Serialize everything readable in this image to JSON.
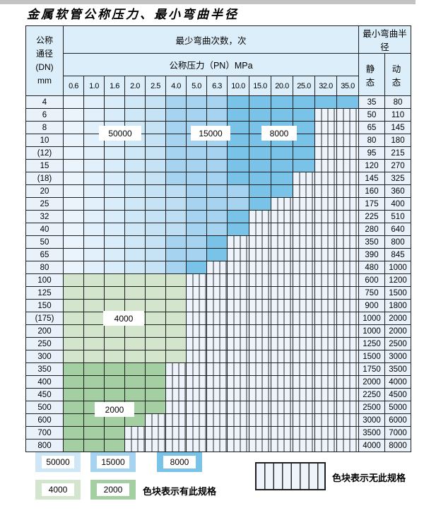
{
  "title": "金属软管公称压力、最小弯曲半径",
  "table": {
    "header": {
      "dn_lines": [
        "公称",
        "通径",
        "(DN)",
        "mm"
      ],
      "cycles_label": "最少弯曲次数，次",
      "pressure_label": "公称压力（PN）MPa",
      "pressure_columns": [
        "0.6",
        "1.0",
        "1.6",
        "2.0",
        "2.5",
        "4.0",
        "5.0",
        "6.3",
        "10.0",
        "15.0",
        "20.0",
        "25.0",
        "32.0",
        "35.0"
      ],
      "radius_label": "最小弯曲半径",
      "static_label": "静 态",
      "dynamic_label": "动 态"
    },
    "rows": [
      {
        "dn": "4",
        "static": "35",
        "dynamic": "80",
        "zone": "b",
        "last": 13,
        "m": 5,
        "d": 8
      },
      {
        "dn": "6",
        "static": "50",
        "dynamic": "110",
        "zone": "b",
        "last": 11,
        "m": 5,
        "d": 8
      },
      {
        "dn": "8",
        "static": "65",
        "dynamic": "145",
        "zone": "b",
        "last": 11,
        "m": 5,
        "d": 8
      },
      {
        "dn": "10",
        "static": "80",
        "dynamic": "180",
        "zone": "b",
        "last": 11,
        "m": 5,
        "d": 8
      },
      {
        "dn": "(12)",
        "static": "95",
        "dynamic": "215",
        "zone": "b",
        "last": 11,
        "m": 5,
        "d": 8
      },
      {
        "dn": "15",
        "static": "120",
        "dynamic": "270",
        "zone": "b",
        "last": 11,
        "m": 5,
        "d": 8
      },
      {
        "dn": "(18)",
        "static": "145",
        "dynamic": "325",
        "zone": "b",
        "last": 10,
        "m": 5,
        "d": 8
      },
      {
        "dn": "20",
        "static": "160",
        "dynamic": "360",
        "zone": "b",
        "last": 10,
        "m": 6,
        "d": 9
      },
      {
        "dn": "25",
        "static": "175",
        "dynamic": "400",
        "zone": "b",
        "last": 9,
        "m": 6,
        "d": 9
      },
      {
        "dn": "32",
        "static": "225",
        "dynamic": "510",
        "zone": "b",
        "last": 8,
        "m": 6,
        "d": 8
      },
      {
        "dn": "40",
        "static": "280",
        "dynamic": "640",
        "zone": "b",
        "last": 8,
        "m": 6,
        "d": 8
      },
      {
        "dn": "50",
        "static": "350",
        "dynamic": "800",
        "zone": "b",
        "last": 7,
        "m": 5,
        "d": 7
      },
      {
        "dn": "65",
        "static": "390",
        "dynamic": "845",
        "zone": "b",
        "last": 7,
        "m": 5,
        "d": 7
      },
      {
        "dn": "80",
        "static": "480",
        "dynamic": "1000",
        "zone": "b",
        "last": 6,
        "m": 5,
        "d": 6
      },
      {
        "dn": "100",
        "static": "600",
        "dynamic": "1200",
        "zone": "g1",
        "last": 5
      },
      {
        "dn": "125",
        "static": "750",
        "dynamic": "1500",
        "zone": "g1",
        "last": 5
      },
      {
        "dn": "150",
        "static": "900",
        "dynamic": "1800",
        "zone": "g1",
        "last": 5
      },
      {
        "dn": "(175)",
        "static": "1000",
        "dynamic": "2000",
        "zone": "g1",
        "last": 5
      },
      {
        "dn": "200",
        "static": "1000",
        "dynamic": "2000",
        "zone": "g1",
        "last": 5
      },
      {
        "dn": "250",
        "static": "1250",
        "dynamic": "2500",
        "zone": "g1",
        "last": 5
      },
      {
        "dn": "300",
        "static": "1500",
        "dynamic": "3000",
        "zone": "g1",
        "last": 5
      },
      {
        "dn": "350",
        "static": "1750",
        "dynamic": "3500",
        "zone": "g2",
        "last": 4
      },
      {
        "dn": "400",
        "static": "2000",
        "dynamic": "4000",
        "zone": "g2",
        "last": 4
      },
      {
        "dn": "450",
        "static": "2250",
        "dynamic": "4500",
        "zone": "g2",
        "last": 4
      },
      {
        "dn": "500",
        "static": "2500",
        "dynamic": "5000",
        "zone": "g2",
        "last": 4
      },
      {
        "dn": "600",
        "static": "3000",
        "dynamic": "6000",
        "zone": "g2",
        "last": 3
      },
      {
        "dn": "700",
        "static": "3500",
        "dynamic": "7000",
        "zone": "g2",
        "last": 2
      },
      {
        "dn": "800",
        "static": "4000",
        "dynamic": "8000",
        "zone": "g2",
        "last": 2
      }
    ]
  },
  "overlays": {
    "v50000": "50000",
    "v15000": "15000",
    "v8000": "8000",
    "v4000": "4000",
    "v2000": "2000"
  },
  "legend": {
    "available": [
      {
        "label": "50000",
        "color_key": "blue_50000"
      },
      {
        "label": "15000",
        "color_key": "blue_15000"
      },
      {
        "label": "8000",
        "color_key": "blue_8000"
      },
      {
        "label": "4000",
        "color_key": "green_4000"
      },
      {
        "label": "2000",
        "color_key": "green_2000"
      }
    ],
    "available_text": "色块表示有此规格",
    "unavailable_text": "色块表示无此规格"
  },
  "colors": {
    "blue_50000": "#cfe6f7",
    "blue_15000": "#a5d3f0",
    "blue_8000": "#79c3e9",
    "green_4000": "#d3e5cc",
    "green_2000": "#a3cfa3",
    "light_ramp": [
      "#e9f4fc",
      "#e1f0fa",
      "#d8ecf9",
      "#cfe8f7",
      "#c6e3f5",
      "#bedff3",
      "#b6dbf1",
      "#aed7f0"
    ],
    "hatch_bg": "#eef4fb",
    "header_bg": "#dceef9"
  }
}
